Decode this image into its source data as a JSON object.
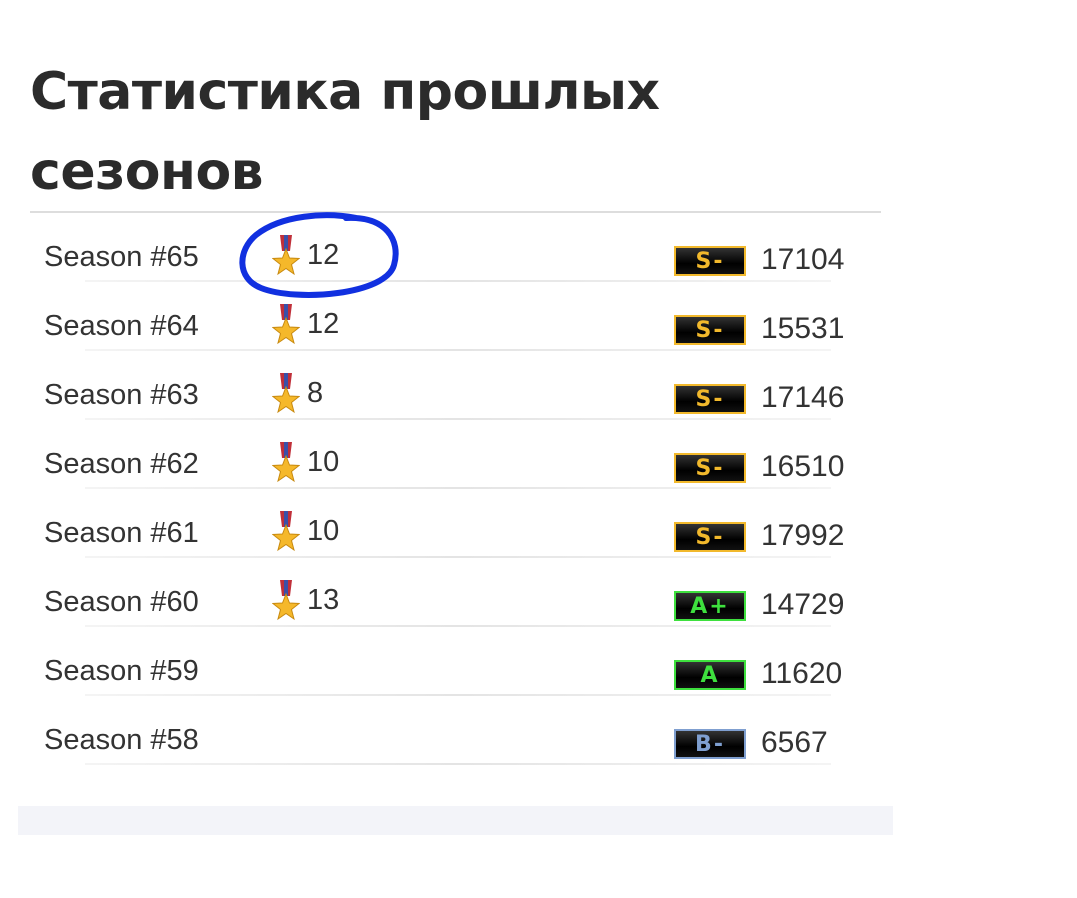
{
  "title": "Статистика прошлых сезонов",
  "rank_colors": {
    "S-": "#f2b92c",
    "A+": "#3ee03e",
    "A": "#3ee03e",
    "B-": "#7f9fd0"
  },
  "annotation_color": "#1130e0",
  "seasons": [
    {
      "season": "Season #65",
      "medals": "12",
      "rank": "S-",
      "score": "17104"
    },
    {
      "season": "Season #64",
      "medals": "12",
      "rank": "S-",
      "score": "15531"
    },
    {
      "season": "Season #63",
      "medals": "8",
      "rank": "S-",
      "score": "17146"
    },
    {
      "season": "Season #62",
      "medals": "10",
      "rank": "S-",
      "score": "16510"
    },
    {
      "season": "Season #61",
      "medals": "10",
      "rank": "S-",
      "score": "17992"
    },
    {
      "season": "Season #60",
      "medals": "13",
      "rank": "A+",
      "score": "14729"
    },
    {
      "season": "Season #59",
      "medals": "",
      "rank": "A",
      "score": "11620"
    },
    {
      "season": "Season #58",
      "medals": "",
      "rank": "B-",
      "score": "6567"
    }
  ]
}
